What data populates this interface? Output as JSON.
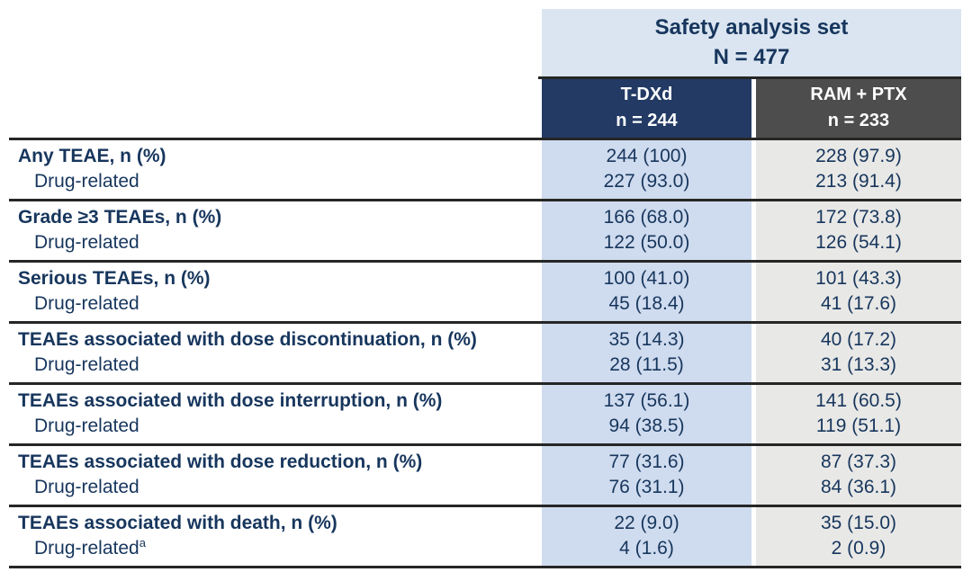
{
  "table": {
    "group_header": {
      "title": "Safety analysis set",
      "n_label": "N = 477"
    },
    "columns": [
      {
        "label": "T-DXd",
        "n_label": "n = 244"
      },
      {
        "label": "RAM + PTX",
        "n_label": "n = 233"
      }
    ],
    "rows": [
      {
        "label": "Any TEAE, n (%)",
        "sub_label": "Drug-related",
        "sub_superscript": "",
        "values": [
          "244 (100)",
          "228 (97.9)"
        ],
        "sub_values": [
          "227 (93.0)",
          "213 (91.4)"
        ]
      },
      {
        "label": "Grade ≥3 TEAEs, n (%)",
        "sub_label": "Drug-related",
        "sub_superscript": "",
        "values": [
          "166 (68.0)",
          "172 (73.8)"
        ],
        "sub_values": [
          "122 (50.0)",
          "126 (54.1)"
        ]
      },
      {
        "label": "Serious TEAEs, n (%)",
        "sub_label": "Drug-related",
        "sub_superscript": "",
        "values": [
          "100 (41.0)",
          "101 (43.3)"
        ],
        "sub_values": [
          "45 (18.4)",
          "41 (17.6)"
        ]
      },
      {
        "label": "TEAEs associated with dose discontinuation, n (%)",
        "sub_label": "Drug-related",
        "sub_superscript": "",
        "values": [
          "35 (14.3)",
          "40 (17.2)"
        ],
        "sub_values": [
          "28 (11.5)",
          "31 (13.3)"
        ]
      },
      {
        "label": "TEAEs associated with dose interruption, n (%)",
        "sub_label": "Drug-related",
        "sub_superscript": "",
        "values": [
          "137 (56.1)",
          "141 (60.5)"
        ],
        "sub_values": [
          "94 (38.5)",
          "119 (51.1)"
        ]
      },
      {
        "label": "TEAEs associated with dose reduction, n (%)",
        "sub_label": "Drug-related",
        "sub_superscript": "",
        "values": [
          "77 (31.6)",
          "87 (37.3)"
        ],
        "sub_values": [
          "76 (31.1)",
          "84 (36.1)"
        ]
      },
      {
        "label": "TEAEs associated with death, n (%)",
        "sub_label": "Drug-related",
        "sub_superscript": "a",
        "values": [
          "22 (9.0)",
          "35 (15.0)"
        ],
        "sub_values": [
          "4 (1.6)",
          "2 (0.9)"
        ]
      }
    ],
    "colors": {
      "banner_bg": "#DBE5F1",
      "tdxd_header_bg": "#223A64",
      "ram_header_bg": "#4D4D4D",
      "tdxd_column_bg": "#CFDBEE",
      "ram_column_bg": "#E8E8E6",
      "text_navy": "#17365D",
      "header_text": "#FFFFFF",
      "separator_line": "#262626"
    }
  }
}
